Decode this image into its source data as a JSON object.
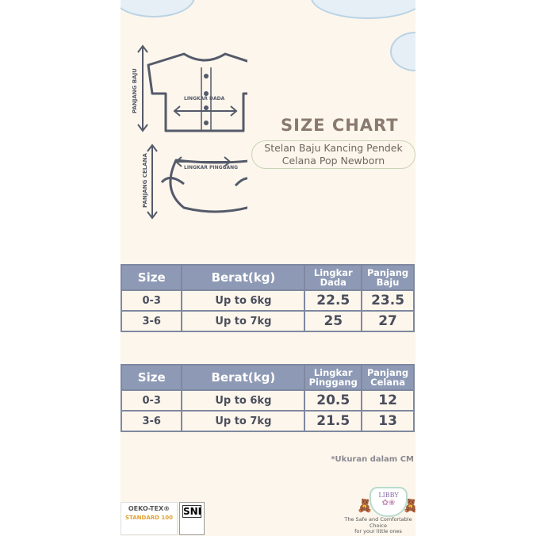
{
  "header": {
    "title": "SIZE CHART",
    "subtitle_line1": "Stelan Baju Kancing Pendek",
    "subtitle_line2": "Celana Pop Newborn"
  },
  "diagram": {
    "shirt_length_label": "PANJANG BAJU",
    "chest_label": "LINGKAR DADA",
    "pants_length_label": "PANJANG CELANA",
    "waist_label": "LINGKAR PINGGANG"
  },
  "shirt_table": {
    "headers": [
      "Size",
      "Berat(kg)",
      "Lingkar Dada",
      "Panjang Baju"
    ],
    "rows": [
      [
        "0-3",
        "Up to 6kg",
        "22.5",
        "23.5"
      ],
      [
        "3-6",
        "Up to 7kg",
        "25",
        "27"
      ]
    ]
  },
  "pants_table": {
    "headers": [
      "Size",
      "Berat(kg)",
      "Lingkar Pinggang",
      "Panjang Celana"
    ],
    "rows": [
      [
        "0-3",
        "Up to 6kg",
        "20.5",
        "12"
      ],
      [
        "3-6",
        "Up to 7kg",
        "21.5",
        "13"
      ]
    ]
  },
  "note": "*Ukuran dalam CM",
  "badges": {
    "oeko_title": "OEKO-TEX®",
    "oeko_standard": "STANDARD 100",
    "sni": "SNI",
    "brand": "LIBBY",
    "tagline_line1": "The Safe and Comfortable Choice",
    "tagline_line2": "for your little ones"
  },
  "colors": {
    "background": "#fcf6ec",
    "table_header": "#8e9ab5",
    "border": "#7f88a0",
    "title": "#8a7a6e"
  }
}
